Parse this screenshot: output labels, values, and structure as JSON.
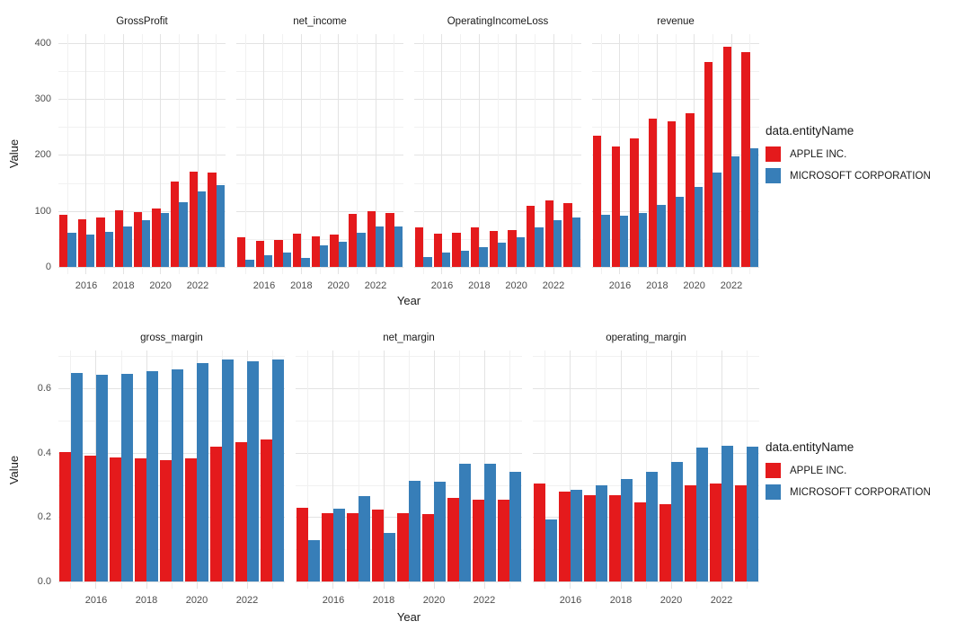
{
  "legend": {
    "title": "data.entityName",
    "items": [
      {
        "label": "APPLE INC.",
        "color": "#e41a1c"
      },
      {
        "label": "MICROSOFT CORPORATION",
        "color": "#377eb8"
      }
    ]
  },
  "axes": {
    "x_label": "Year",
    "y_label": "Value"
  },
  "colors": {
    "apple": "#e41a1c",
    "microsoft": "#377eb8",
    "grid_major": "#e3e3e3",
    "grid_minor": "#f1f1f1",
    "tick_text": "#4d4d4d",
    "title_text": "#1a1a1a",
    "background": "#ffffff"
  },
  "chart_data": {
    "type": "bar",
    "x": [
      2015,
      2016,
      2017,
      2018,
      2019,
      2020,
      2021,
      2022,
      2023
    ],
    "x_ticks": [
      2016,
      2018,
      2020,
      2022
    ],
    "x_tick_labels": [
      "2016",
      "2018",
      "2020",
      "2022"
    ],
    "series_names": [
      "APPLE INC.",
      "MICROSOFT CORPORATION"
    ],
    "legend_position": "right",
    "grid": true,
    "rows": [
      {
        "ylabel": "Value",
        "xlabel": "Year",
        "ymin": -13,
        "ymax": 416,
        "yticks": [
          0,
          100,
          200,
          300,
          400
        ],
        "ytick_labels": [
          "0",
          "100",
          "200",
          "300",
          "400"
        ],
        "yminor": [
          50,
          150,
          250,
          350
        ],
        "facets": [
          {
            "title": "GrossProfit",
            "series": [
              {
                "name": "APPLE INC.",
                "values": [
                  93.6,
                  84.3,
                  88.2,
                  101.8,
                  98.4,
                  104.9,
                  152.8,
                  170.8,
                  169.1
                ]
              },
              {
                "name": "MICROSOFT CORPORATION",
                "values": [
                  60.5,
                  58.4,
                  62.3,
                  72.0,
                  82.9,
                  96.9,
                  115.9,
                  135.6,
                  146.1
                ]
              }
            ]
          },
          {
            "title": "net_income",
            "series": [
              {
                "name": "APPLE INC.",
                "values": [
                  53.4,
                  45.7,
                  48.4,
                  59.5,
                  55.3,
                  57.4,
                  94.7,
                  99.8,
                  97.0
                ]
              },
              {
                "name": "MICROSOFT CORPORATION",
                "values": [
                  12.2,
                  20.5,
                  25.5,
                  16.6,
                  39.2,
                  44.3,
                  61.3,
                  72.7,
                  72.4
                ]
              }
            ]
          },
          {
            "title": "OperatingIncomeLoss",
            "series": [
              {
                "name": "APPLE INC.",
                "values": [
                  71.2,
                  60.0,
                  61.3,
                  70.9,
                  63.9,
                  66.3,
                  108.9,
                  119.4,
                  114.3
                ]
              },
              {
                "name": "MICROSOFT CORPORATION",
                "values": [
                  18.2,
                  26.1,
                  29.0,
                  35.1,
                  43.0,
                  53.0,
                  69.9,
                  83.4,
                  88.5
                ]
              }
            ]
          },
          {
            "title": "revenue",
            "series": [
              {
                "name": "APPLE INC.",
                "values": [
                  233.7,
                  215.6,
                  229.2,
                  265.6,
                  260.2,
                  274.5,
                  365.8,
                  394.3,
                  383.3
                ]
              },
              {
                "name": "MICROSOFT CORPORATION",
                "values": [
                  93.6,
                  91.2,
                  96.6,
                  110.4,
                  125.8,
                  143.0,
                  168.1,
                  198.3,
                  211.9
                ]
              }
            ]
          }
        ]
      },
      {
        "ylabel": "Value",
        "xlabel": "Year",
        "ymin": -0.022,
        "ymax": 0.717,
        "yticks": [
          0,
          0.2,
          0.4,
          0.6
        ],
        "ytick_labels": [
          "0.0",
          "0.2",
          "0.4",
          "0.6"
        ],
        "yminor": [
          0.1,
          0.3,
          0.5,
          0.7
        ],
        "facets": [
          {
            "title": "gross_margin",
            "series": [
              {
                "name": "APPLE INC.",
                "values": [
                  0.401,
                  0.391,
                  0.385,
                  0.383,
                  0.378,
                  0.382,
                  0.418,
                  0.433,
                  0.441
                ]
              },
              {
                "name": "MICROSOFT CORPORATION",
                "values": [
                  0.646,
                  0.641,
                  0.645,
                  0.652,
                  0.659,
                  0.678,
                  0.689,
                  0.684,
                  0.689
                ]
              }
            ]
          },
          {
            "title": "net_margin",
            "series": [
              {
                "name": "APPLE INC.",
                "values": [
                  0.228,
                  0.212,
                  0.211,
                  0.224,
                  0.212,
                  0.209,
                  0.259,
                  0.253,
                  0.253
                ]
              },
              {
                "name": "MICROSOFT CORPORATION",
                "values": [
                  0.13,
                  0.225,
                  0.264,
                  0.15,
                  0.312,
                  0.31,
                  0.365,
                  0.367,
                  0.342
                ]
              }
            ]
          },
          {
            "title": "operating_margin",
            "series": [
              {
                "name": "APPLE INC.",
                "values": [
                  0.305,
                  0.278,
                  0.268,
                  0.267,
                  0.246,
                  0.241,
                  0.298,
                  0.303,
                  0.298
                ]
              },
              {
                "name": "MICROSOFT CORPORATION",
                "values": [
                  0.194,
                  0.286,
                  0.3,
                  0.318,
                  0.342,
                  0.37,
                  0.416,
                  0.421,
                  0.418
                ]
              }
            ]
          }
        ]
      }
    ]
  }
}
